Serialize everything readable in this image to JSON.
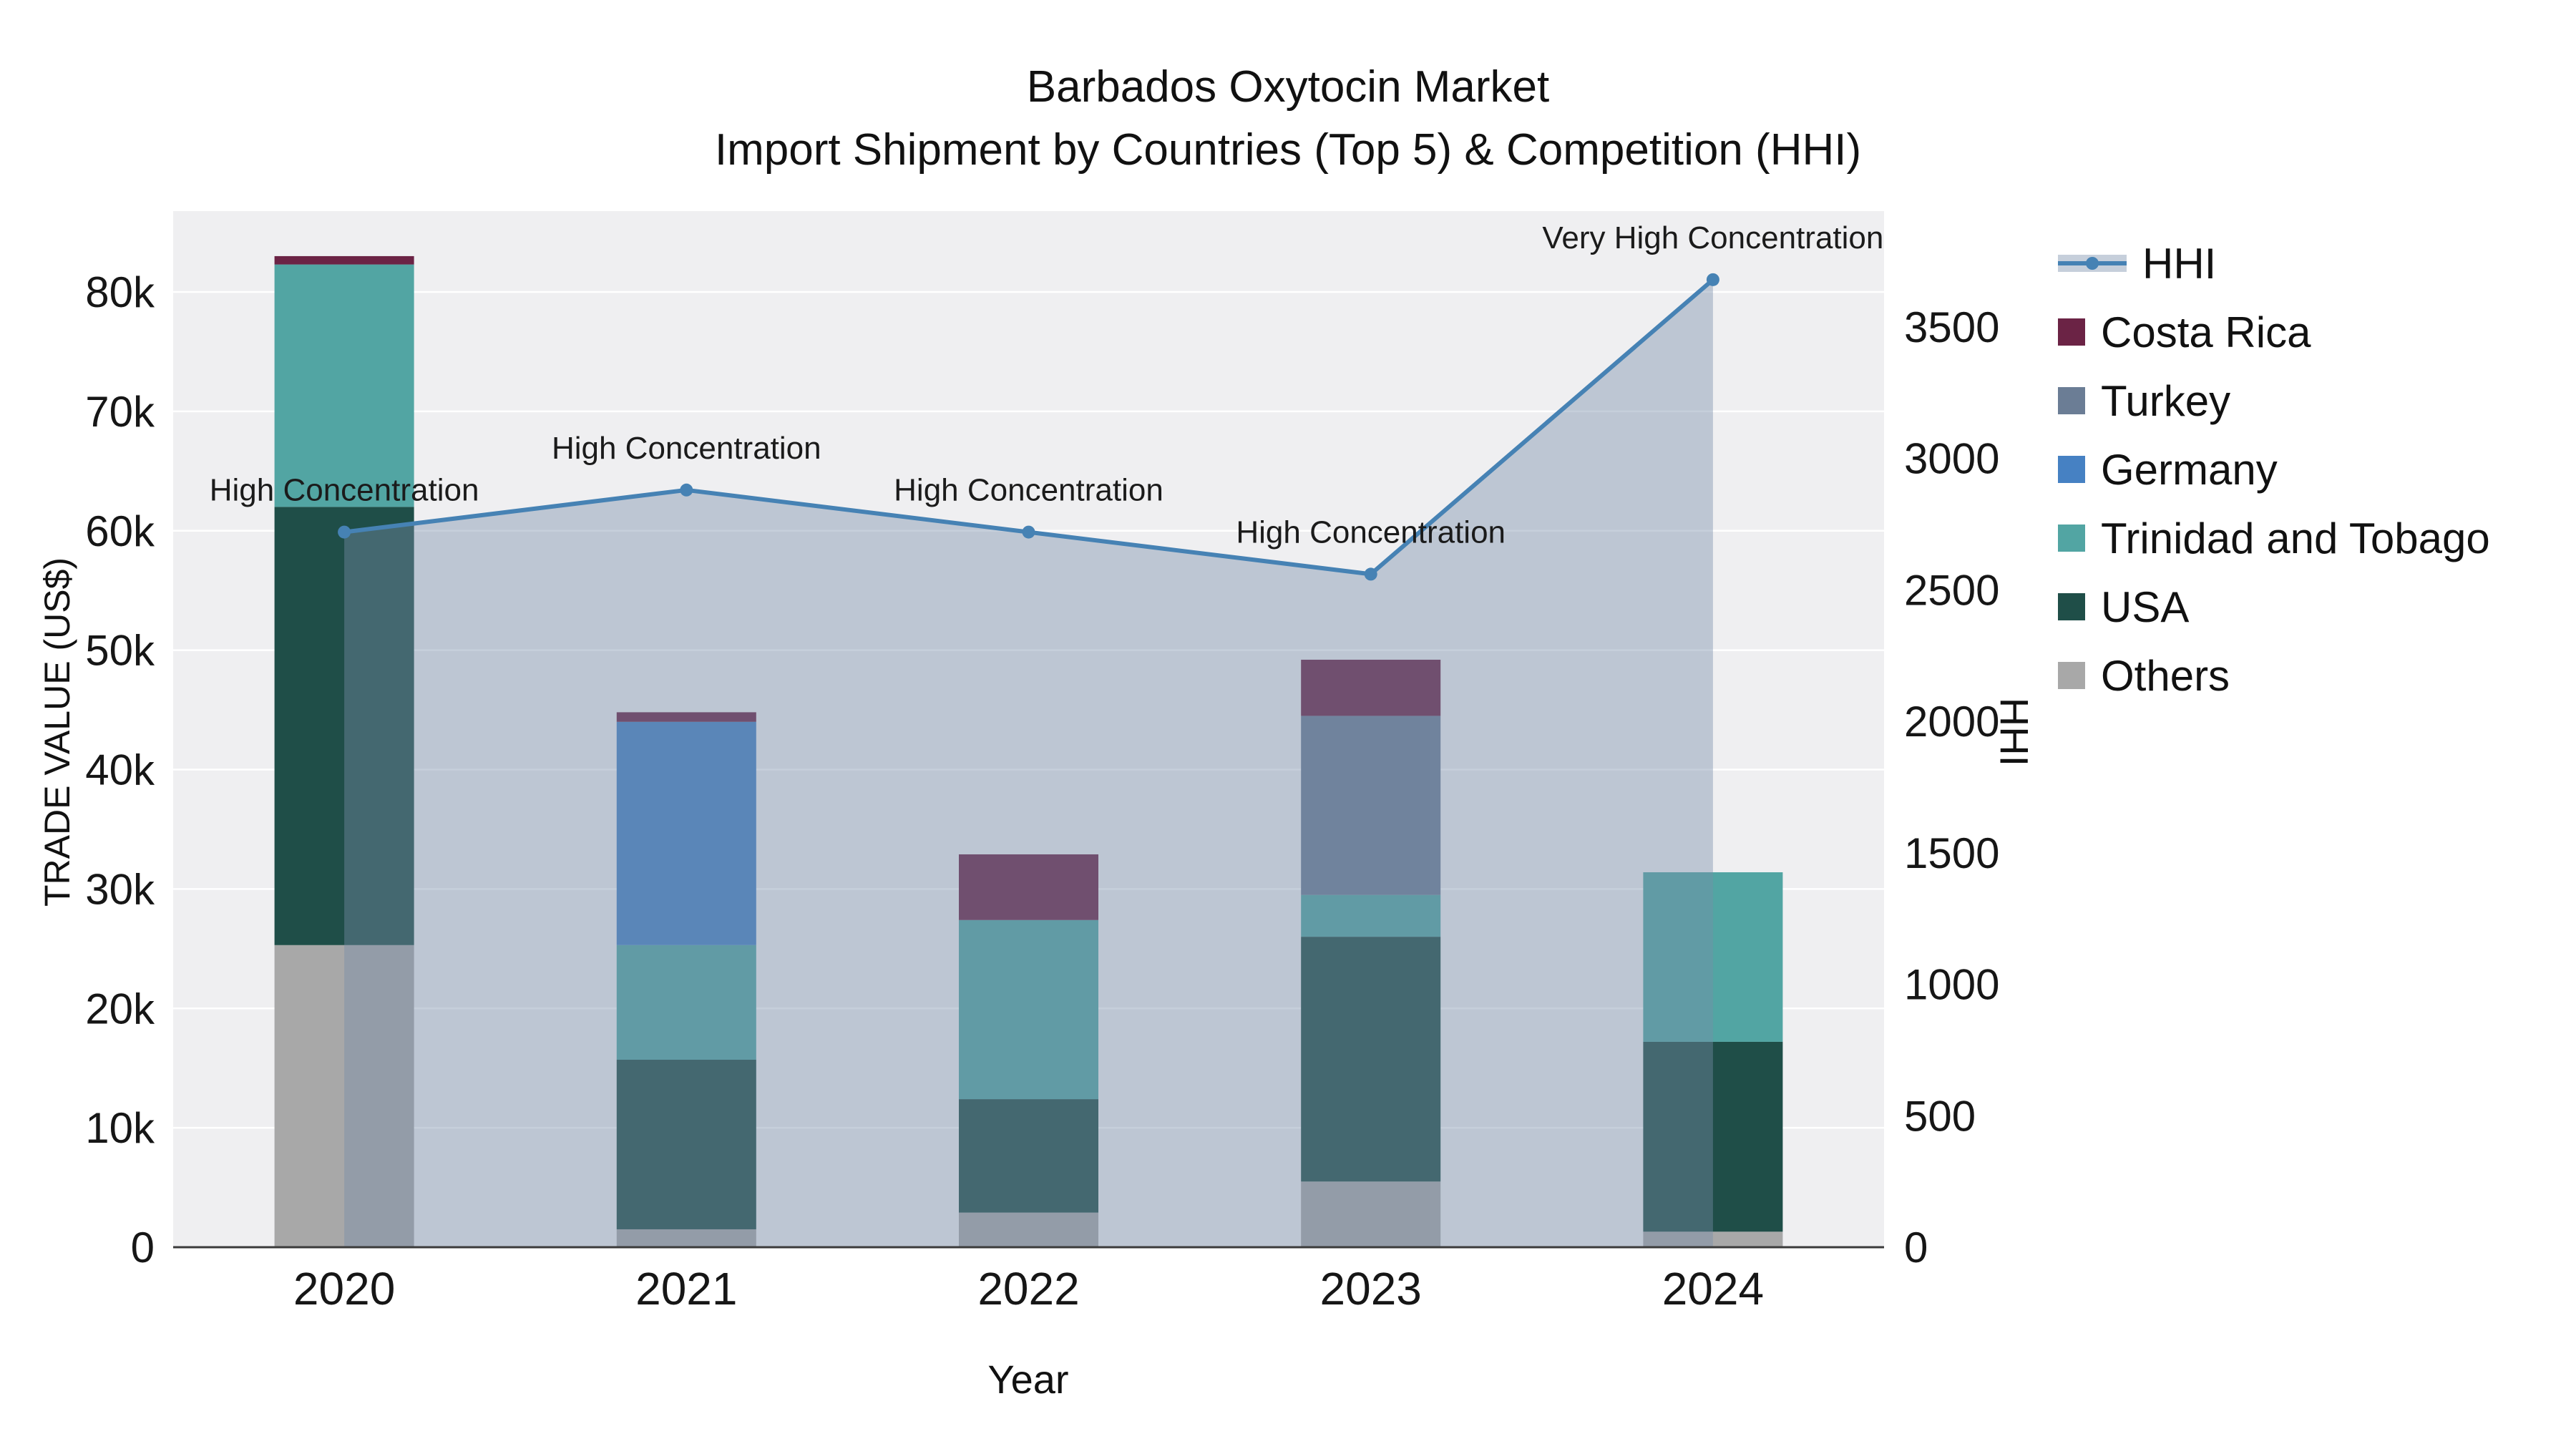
{
  "title": {
    "line1": "Barbados Oxytocin Market",
    "line2": "Import Shipment by Countries (Top 5) & Competition (HHI)"
  },
  "axes": {
    "x_label": "Year",
    "y_left_label": "TRADE VALUE (US$)",
    "y_right_label": "HHI"
  },
  "chart_data": {
    "type": "bar+line",
    "subtype": "stacked bars (left axis, trade value US$) with HHI line + area fill (right axis)",
    "categories": [
      "2020",
      "2021",
      "2022",
      "2023",
      "2024"
    ],
    "bar_stack_order": "bottom_to_top",
    "bar_series": [
      {
        "name": "Others",
        "color": "#a8a8a8",
        "values": [
          25300,
          1500,
          2900,
          5500,
          1300
        ]
      },
      {
        "name": "USA",
        "color": "#1f4e48",
        "values": [
          36700,
          14200,
          9500,
          20500,
          15900
        ]
      },
      {
        "name": "Trinidad and Tobago",
        "color": "#52a5a3",
        "values": [
          20300,
          9600,
          15000,
          3500,
          14200
        ]
      },
      {
        "name": "Germany",
        "color": "#4681c3",
        "values": [
          0,
          18700,
          0,
          0,
          0
        ]
      },
      {
        "name": "Turkey",
        "color": "#6b7d95",
        "values": [
          0,
          0,
          0,
          15000,
          0
        ]
      },
      {
        "name": "Costa Rica",
        "color": "#6b2345",
        "values": [
          700,
          800,
          5500,
          4700,
          0
        ]
      }
    ],
    "bar_totals": [
      83000,
      44800,
      32900,
      49200,
      31400
    ],
    "line_series": {
      "name": "HHI",
      "color": "#4682b4",
      "fill_color": "rgba(120,140,170,0.42)",
      "values": [
        2720,
        2880,
        2720,
        2560,
        3680
      ],
      "annotations": [
        "High Concentration",
        "High Concentration",
        "High Concentration",
        "High Concentration",
        "Very High Concentration"
      ]
    },
    "y_left": {
      "tick_labels": [
        "0",
        "10k",
        "20k",
        "30k",
        "40k",
        "50k",
        "60k",
        "70k",
        "80k"
      ],
      "tick_values": [
        0,
        10000,
        20000,
        30000,
        40000,
        50000,
        60000,
        70000,
        80000
      ],
      "tick_max": 80000,
      "axis_range": [
        0,
        86000
      ]
    },
    "y_right": {
      "tick_labels": [
        "0",
        "500",
        "1000",
        "1500",
        "2000",
        "2500",
        "3000",
        "3500"
      ],
      "tick_values": [
        0,
        500,
        1000,
        1500,
        2000,
        2500,
        3000,
        3500
      ],
      "tick_max": 3500,
      "axis_range": [
        0,
        3920
      ]
    },
    "legend": [
      {
        "label": "HHI",
        "type": "line",
        "color": "#4682b4"
      },
      {
        "label": "Costa Rica",
        "type": "square",
        "color": "#6b2345"
      },
      {
        "label": "Turkey",
        "type": "square",
        "color": "#6b7d95"
      },
      {
        "label": "Germany",
        "type": "square",
        "color": "#4681c3"
      },
      {
        "label": "Trinidad and Tobago",
        "type": "square",
        "color": "#52a5a3"
      },
      {
        "label": "USA",
        "type": "square",
        "color": "#1f4e48"
      },
      {
        "label": "Others",
        "type": "square",
        "color": "#a8a8a8"
      }
    ],
    "style": {
      "plot_background": "#efeff1",
      "grid_color": "#ffffff",
      "axis_line_color": "#3b3b3b",
      "text_color": "#161616"
    }
  }
}
